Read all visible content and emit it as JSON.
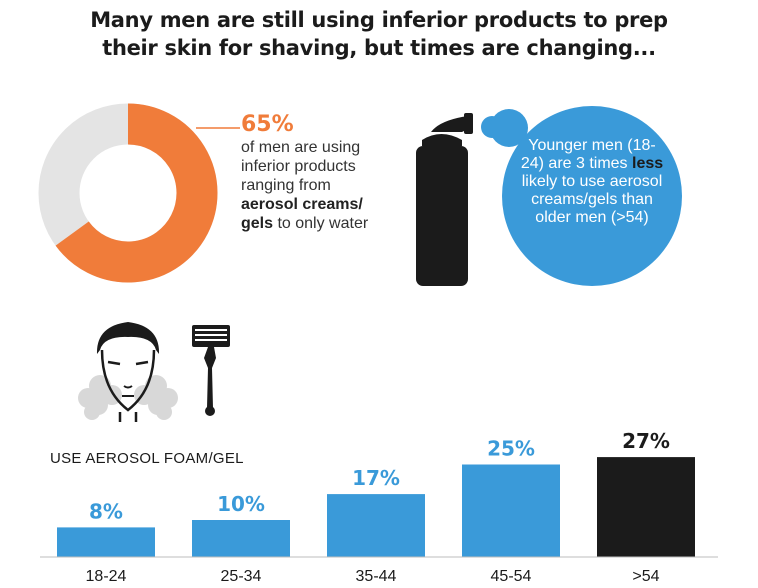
{
  "title": {
    "line1": "Many men are still using inferior products to prep",
    "line2": "their skin for shaving, but times are changing..."
  },
  "donut": {
    "percent_label": "65%",
    "value": 65,
    "text_before": "of men are using inferior products ranging from ",
    "text_bold": "aerosol creams/ gels",
    "text_after": " to only water",
    "accent_color": "#f07c3a",
    "rest_color": "#e4e4e4"
  },
  "bubble": {
    "text_before": "Younger men (18-24) are 3 times ",
    "text_bold": "less",
    "text_after": " likely to use aerosol creams/gels than older men (>54)",
    "color": "#3a9ad9"
  },
  "icons": [
    "aerosol-can-icon",
    "man-face-icon",
    "razor-icon"
  ],
  "chart_data": {
    "type": "bar",
    "title": "USE AEROSOL FOAM/GEL",
    "categories": [
      "18-24",
      "25-34",
      "35-44",
      "45-54",
      ">54"
    ],
    "values": [
      8,
      10,
      17,
      25,
      27
    ],
    "value_labels": [
      "8%",
      "10%",
      "17%",
      "25%",
      "27%"
    ],
    "colors": [
      "#3a9ad9",
      "#3a9ad9",
      "#3a9ad9",
      "#3a9ad9",
      "#1b1b1b"
    ],
    "grid": false
  }
}
